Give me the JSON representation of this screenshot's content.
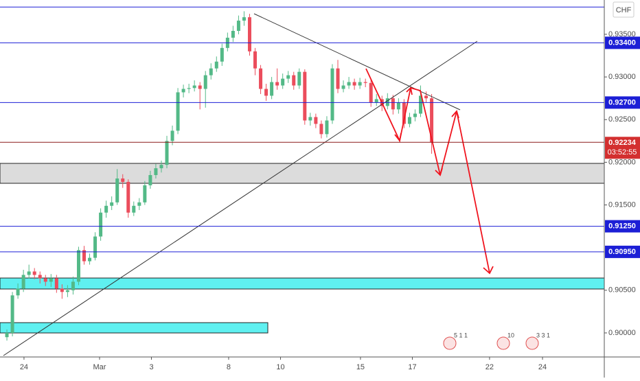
{
  "chart_data": {
    "type": "candlestick",
    "symbol": "CHF",
    "open": [
      0.8995,
      0.9,
      0.9044,
      0.9052,
      0.9068,
      0.9072,
      0.9068,
      0.9064,
      0.906,
      0.9064,
      0.9052,
      0.9048,
      0.905,
      0.906,
      0.9097,
      0.9084,
      0.9088,
      0.9113,
      0.9141,
      0.9149,
      0.9153,
      0.9181,
      0.9177,
      0.9141,
      0.9149,
      0.9153,
      0.9173,
      0.9185,
      0.9193,
      0.9197,
      0.9225,
      0.9237,
      0.9282,
      0.9286,
      0.9287,
      0.929,
      0.9286,
      0.9302,
      0.931,
      0.9318,
      0.9334,
      0.9346,
      0.9354,
      0.9366,
      0.937,
      0.933,
      0.931,
      0.9286,
      0.9278,
      0.9294,
      0.929,
      0.9298,
      0.9302,
      0.929,
      0.9306,
      0.9249,
      0.9253,
      0.9245,
      0.9233,
      0.9249,
      0.931,
      0.9286,
      0.929,
      0.9294,
      0.929,
      0.9294,
      0.9293,
      0.927,
      0.9274,
      0.9266,
      0.9275,
      0.9262,
      0.927,
      0.9245,
      0.9253,
      0.9257,
      0.9278,
      0.9275
    ],
    "high": [
      0.9004,
      0.9048,
      0.9058,
      0.9074,
      0.908,
      0.9076,
      0.9072,
      0.9068,
      0.9069,
      0.9068,
      0.9057,
      0.9056,
      0.9066,
      0.9101,
      0.9102,
      0.9093,
      0.9118,
      0.9146,
      0.9155,
      0.916,
      0.9192,
      0.9186,
      0.918,
      0.9154,
      0.9158,
      0.9178,
      0.919,
      0.9198,
      0.9202,
      0.9231,
      0.9243,
      0.9287,
      0.9291,
      0.9292,
      0.9296,
      0.9294,
      0.9307,
      0.9316,
      0.9324,
      0.9339,
      0.9352,
      0.936,
      0.9372,
      0.9377,
      0.9374,
      0.9334,
      0.9314,
      0.9292,
      0.93,
      0.931,
      0.9304,
      0.9307,
      0.9306,
      0.931,
      0.9309,
      0.9258,
      0.9257,
      0.9249,
      0.9254,
      0.9315,
      0.932,
      0.9296,
      0.93,
      0.9298,
      0.9299,
      0.9298,
      0.9297,
      0.928,
      0.9278,
      0.9281,
      0.9279,
      0.9275,
      0.9274,
      0.9258,
      0.9262,
      0.929,
      0.9283,
      0.928
    ],
    "low": [
      0.8991,
      0.8996,
      0.904,
      0.9048,
      0.9064,
      0.9063,
      0.9058,
      0.9055,
      0.9054,
      0.9047,
      0.904,
      0.9042,
      0.9045,
      0.9056,
      0.908,
      0.908,
      0.9085,
      0.9108,
      0.9135,
      0.9144,
      0.915,
      0.917,
      0.9135,
      0.9137,
      0.9144,
      0.915,
      0.9169,
      0.9181,
      0.9188,
      0.9193,
      0.922,
      0.9233,
      0.9276,
      0.9281,
      0.9283,
      0.9262,
      0.9264,
      0.9297,
      0.9306,
      0.9313,
      0.933,
      0.9341,
      0.935,
      0.936,
      0.9325,
      0.9302,
      0.928,
      0.9272,
      0.9274,
      0.9285,
      0.9286,
      0.9293,
      0.9285,
      0.9286,
      0.9244,
      0.9243,
      0.924,
      0.9228,
      0.9229,
      0.9245,
      0.9281,
      0.9282,
      0.9286,
      0.9285,
      0.9286,
      0.9288,
      0.9265,
      0.9266,
      0.926,
      0.9262,
      0.9256,
      0.9257,
      0.924,
      0.9241,
      0.9248,
      0.9253,
      0.927,
      0.921
    ],
    "close": [
      0.9,
      0.9044,
      0.9052,
      0.9068,
      0.9072,
      0.9068,
      0.9064,
      0.906,
      0.9064,
      0.9052,
      0.9048,
      0.905,
      0.906,
      0.9097,
      0.9084,
      0.9088,
      0.9113,
      0.9141,
      0.9149,
      0.9153,
      0.9181,
      0.9177,
      0.9141,
      0.9149,
      0.9153,
      0.9173,
      0.9185,
      0.9193,
      0.9197,
      0.9225,
      0.9237,
      0.9282,
      0.9286,
      0.9287,
      0.929,
      0.9286,
      0.9302,
      0.931,
      0.9318,
      0.9334,
      0.9346,
      0.9354,
      0.9366,
      0.937,
      0.933,
      0.931,
      0.9286,
      0.9278,
      0.9294,
      0.929,
      0.9298,
      0.9302,
      0.929,
      0.9306,
      0.9249,
      0.9253,
      0.9245,
      0.9233,
      0.9249,
      0.931,
      0.9286,
      0.929,
      0.9294,
      0.929,
      0.9294,
      0.9293,
      0.927,
      0.9274,
      0.9266,
      0.9275,
      0.9262,
      0.927,
      0.9245,
      0.9253,
      0.9257,
      0.9278,
      0.9275,
      0.92234
    ],
    "up_color": "#53b987",
    "down_color": "#eb4d5c",
    "xlim": [
      -1.25,
      108.3
    ],
    "xticks": [
      {
        "value": 3.1,
        "label": "24"
      },
      {
        "value": 16.8,
        "label": "Mar"
      },
      {
        "value": 26.2,
        "label": "3"
      },
      {
        "value": 40.2,
        "label": "8"
      },
      {
        "value": 49.6,
        "label": "10"
      },
      {
        "value": 64.1,
        "label": "15"
      },
      {
        "value": 73.5,
        "label": "17"
      },
      {
        "value": 87.5,
        "label": "22"
      },
      {
        "value": 97.1,
        "label": "24"
      }
    ],
    "ylim": [
      0.89718,
      0.93902
    ],
    "yticks": [
      {
        "value": 0.9,
        "label": "0.90000"
      },
      {
        "value": 0.905,
        "label": "0.90500"
      },
      {
        "value": 0.915,
        "label": "0.91500"
      },
      {
        "value": 0.92,
        "label": "0.92000"
      },
      {
        "value": 0.925,
        "label": "0.92500"
      },
      {
        "value": 0.93,
        "label": "0.93000"
      },
      {
        "value": 0.935,
        "label": "0.93500"
      }
    ],
    "levels": [
      {
        "value": 0.934,
        "label": "0.93400"
      },
      {
        "value": 0.927,
        "label": "0.92700"
      },
      {
        "value": 0.9125,
        "label": "0.91250"
      },
      {
        "value": 0.9095,
        "label": "0.90950"
      }
    ],
    "top_line": 0.9382,
    "level_color": "#1c1fd6",
    "current_price": {
      "value": 0.92234,
      "label": "0.92234",
      "countdown": "03:52:55"
    },
    "events": [
      "5 1 1",
      "10",
      "3 3 1"
    ]
  }
}
